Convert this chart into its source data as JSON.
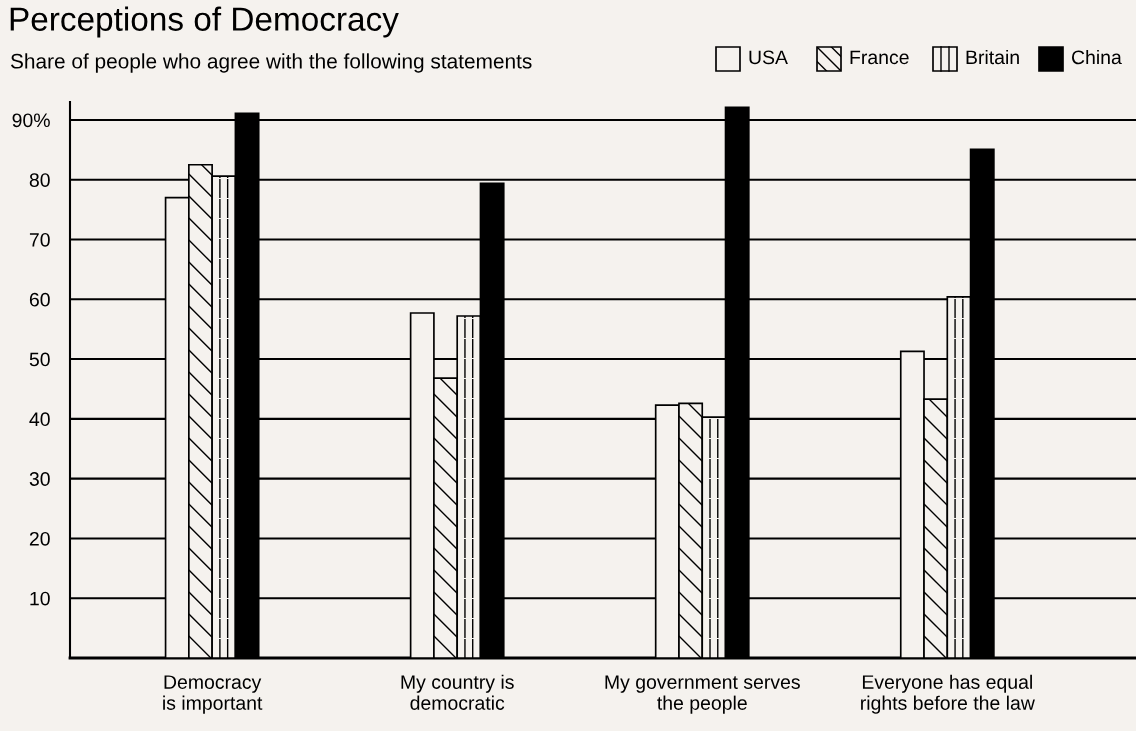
{
  "chart_data": {
    "type": "bar",
    "title": "Perceptions of Democracy",
    "subtitle": "Share of people who agree with the following statements",
    "categories": [
      "Democracy\nis important",
      "My country is\ndemocratic",
      "My government serves\nthe people",
      "Everyone has equal\nrights before the law"
    ],
    "series": [
      {
        "name": "USA",
        "color": "#f5f2ee",
        "values": [
          77,
          57.7,
          42.3,
          51.3
        ]
      },
      {
        "name": "France",
        "color": "#f5f2ee",
        "values": [
          82.5,
          46.8,
          42.6,
          43.3
        ]
      },
      {
        "name": "Britain",
        "color": "#f5f2ee",
        "values": [
          80.6,
          57.2,
          40.3,
          60.4
        ]
      },
      {
        "name": "China",
        "color": "#000000",
        "values": [
          91.1,
          79.4,
          92.1,
          85.1
        ]
      }
    ],
    "ylim": [
      0,
      93
    ],
    "yticks": [
      {
        "value": 10,
        "label": "10"
      },
      20,
      30,
      40,
      50,
      60,
      70,
      80,
      {
        "value": 90,
        "label": "90%"
      }
    ],
    "grid": "y",
    "legend": "top right"
  }
}
